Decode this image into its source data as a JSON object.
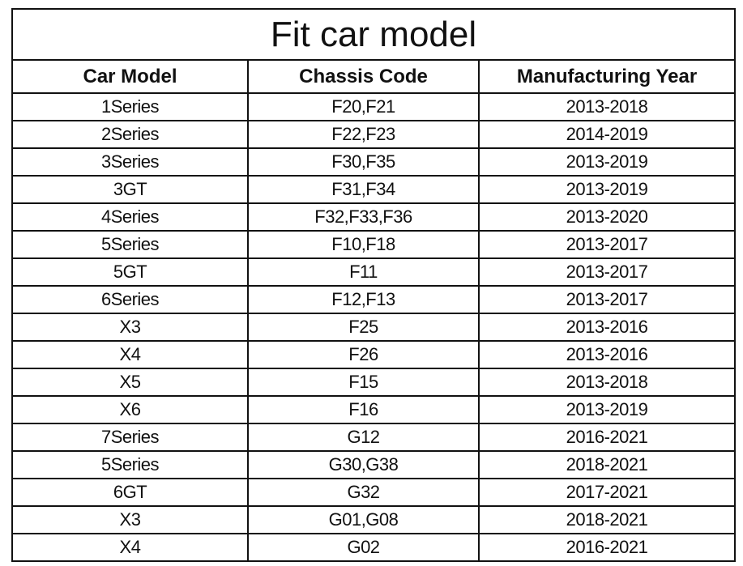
{
  "title": "Fit car model",
  "table": {
    "header": [
      "Car Model",
      "Chassis Code",
      "Manufacturing Year"
    ],
    "rows": [
      [
        "1Series",
        "F20,F21",
        "2013-2018"
      ],
      [
        "2Series",
        "F22,F23",
        "2014-2019"
      ],
      [
        "3Series",
        "F30,F35",
        "2013-2019"
      ],
      [
        "3GT",
        "F31,F34",
        "2013-2019"
      ],
      [
        "4Series",
        "F32,F33,F36",
        "2013-2020"
      ],
      [
        "5Series",
        "F10,F18",
        "2013-2017"
      ],
      [
        "5GT",
        "F11",
        "2013-2017"
      ],
      [
        "6Series",
        "F12,F13",
        "2013-2017"
      ],
      [
        "X3",
        "F25",
        "2013-2016"
      ],
      [
        "X4",
        "F26",
        "2013-2016"
      ],
      [
        "X5",
        "F15",
        "2013-2018"
      ],
      [
        "X6",
        "F16",
        "2013-2019"
      ],
      [
        "7Series",
        "G12",
        "2016-2021"
      ],
      [
        "5Series",
        "G30,G38",
        "2018-2021"
      ],
      [
        "6GT",
        "G32",
        "2017-2021"
      ],
      [
        "X3",
        "G01,G08",
        "2018-2021"
      ],
      [
        "X4",
        "G02",
        "2016-2021"
      ]
    ]
  }
}
